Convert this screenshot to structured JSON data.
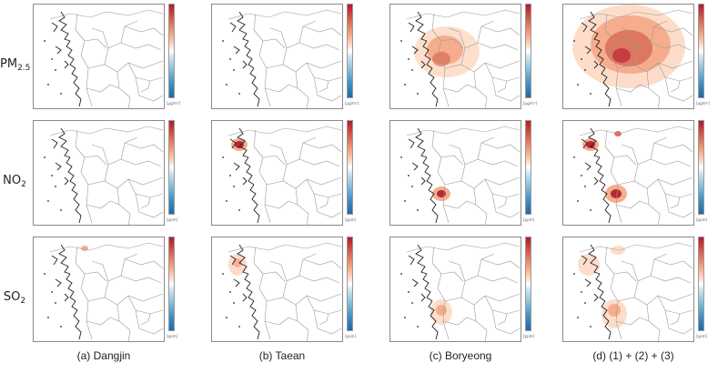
{
  "rows": [
    {
      "id": "pm25",
      "label_main": "PM",
      "label_sub": "2.5",
      "unit": "[μg/m³]"
    },
    {
      "id": "no2",
      "label_main": "NO",
      "label_sub": "2",
      "unit": "[ppm]"
    },
    {
      "id": "so2",
      "label_main": "SO",
      "label_sub": "2",
      "unit": "[ppm]"
    }
  ],
  "columns": [
    {
      "id": "dangjin",
      "caption": "(a) Dangjin"
    },
    {
      "id": "taean",
      "caption": "(b) Taean"
    },
    {
      "id": "boryeong",
      "caption": "(c) Boryeong"
    },
    {
      "id": "sum",
      "caption": "(d) (1) + (2) + (3)"
    }
  ],
  "colors": {
    "high": "#b2182b",
    "mid_high": "#d6604d",
    "low_pos": "#f4a582",
    "light_pos": "#fddbc7",
    "neutral": "#ffffff",
    "low_neg": "#92c5de",
    "high_neg": "#2166ac",
    "border": "#8a8a8a",
    "coast": "#222222"
  }
}
